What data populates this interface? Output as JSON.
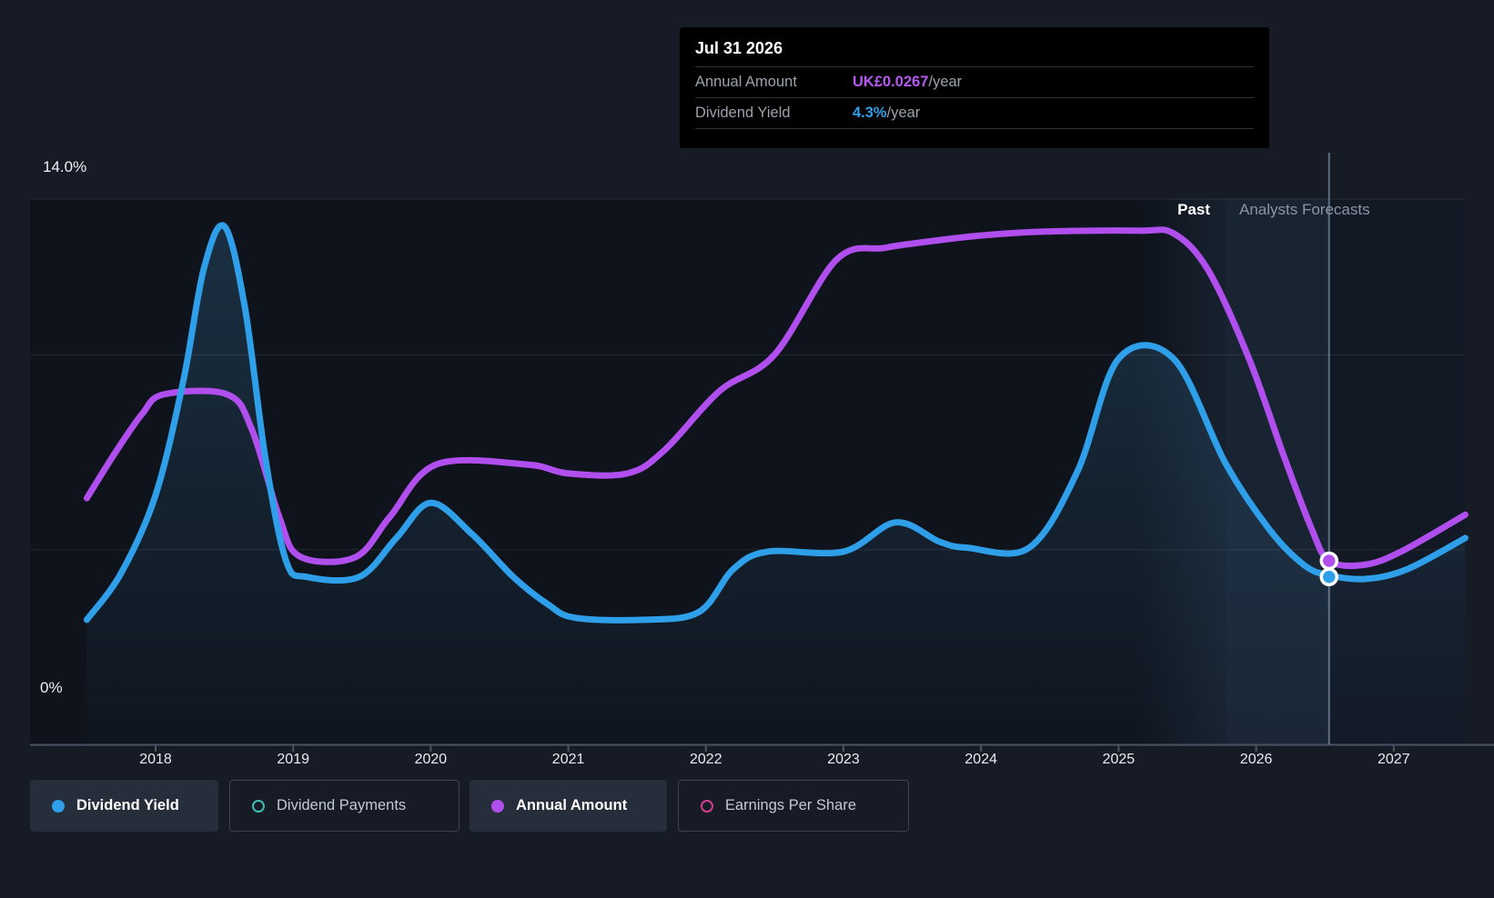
{
  "tooltip": {
    "date": "Jul 31 2026",
    "rows": [
      {
        "label": "Annual Amount",
        "value": "UK£0.0267",
        "suffix": "/year",
        "color": "#b558f0"
      },
      {
        "label": "Dividend Yield",
        "value": "4.3%",
        "suffix": "/year",
        "color": "#2e9fe8"
      }
    ]
  },
  "regions": {
    "past_label": "Past",
    "forecast_label": "Analysts Forecasts"
  },
  "axis": {
    "y_label_top": "14.0%",
    "y_label_bottom": "0%",
    "gridline_percents": [
      14,
      10,
      5
    ],
    "years": [
      2018,
      2019,
      2020,
      2021,
      2022,
      2023,
      2024,
      2025,
      2026,
      2027
    ]
  },
  "legend": [
    {
      "label": "Dividend Yield",
      "color": "#2e9fe8",
      "filled": true,
      "active": true
    },
    {
      "label": "Dividend Payments",
      "color": "#3dbdb5",
      "filled": false,
      "active": false
    },
    {
      "label": "Annual Amount",
      "color": "#b04fee",
      "filled": true,
      "active": true
    },
    {
      "label": "Earnings Per Share",
      "color": "#d33f8d",
      "filled": false,
      "active": false
    }
  ],
  "colors": {
    "background": "#161b25",
    "plot_background": "#0e131c",
    "gridline": "rgba(255,255,255,0.09)",
    "axis_line": "#4b5364",
    "forecast_band": "rgba(84,130,172,0.16)",
    "forecast_band_after_hover": "rgba(70,105,140,0.07)",
    "hover_line": "rgba(151,180,209,0.55)",
    "area_fill_top": "rgba(62,134,180,0.25)",
    "area_fill_bottom": "rgba(62,134,180,0.02)"
  },
  "chart_data": {
    "type": "line",
    "title": "Dividend history and forecast",
    "xlabel": "",
    "ylabel": "Dividend Yield (%)",
    "x_range": [
      2017.5,
      2027.55
    ],
    "x_base_year": 2018,
    "grid": true,
    "legend_position": "bottom",
    "forecast_start_year": 2025.78,
    "hover": {
      "date": "Jul 31 2026",
      "year": 2026.53,
      "dividend_yield_pct": 4.3,
      "annual_amount_gbp": 0.0267
    },
    "series": [
      {
        "name": "Dividend Yield",
        "unit": "%",
        "axis_max": 14,
        "color": "#2e9fe8",
        "fill": true,
        "points": [
          [
            2017.5,
            3.2
          ],
          [
            2017.75,
            4.4
          ],
          [
            2018.0,
            6.4
          ],
          [
            2018.2,
            9.3
          ],
          [
            2018.35,
            12.2
          ],
          [
            2018.5,
            13.3
          ],
          [
            2018.65,
            11.2
          ],
          [
            2018.8,
            7.3
          ],
          [
            2018.95,
            4.7
          ],
          [
            2019.1,
            4.3
          ],
          [
            2019.48,
            4.3
          ],
          [
            2019.75,
            5.3
          ],
          [
            2020.0,
            6.2
          ],
          [
            2020.3,
            5.4
          ],
          [
            2020.6,
            4.3
          ],
          [
            2020.85,
            3.6
          ],
          [
            2021.05,
            3.25
          ],
          [
            2021.55,
            3.2
          ],
          [
            2021.95,
            3.4
          ],
          [
            2022.2,
            4.5
          ],
          [
            2022.45,
            4.95
          ],
          [
            2023.0,
            4.95
          ],
          [
            2023.38,
            5.7
          ],
          [
            2023.7,
            5.2
          ],
          [
            2023.9,
            5.05
          ],
          [
            2024.35,
            5.05
          ],
          [
            2024.7,
            7.0
          ],
          [
            2025.0,
            9.9
          ],
          [
            2025.4,
            9.9
          ],
          [
            2025.78,
            7.2
          ],
          [
            2026.1,
            5.5
          ],
          [
            2026.35,
            4.6
          ],
          [
            2026.53,
            4.34
          ],
          [
            2026.8,
            4.25
          ],
          [
            2027.1,
            4.5
          ],
          [
            2027.52,
            5.3
          ]
        ]
      },
      {
        "name": "Annual Amount",
        "unit": "GBP/year",
        "axis_max": 0.0793,
        "color": "#b04fee",
        "fill": false,
        "points": [
          [
            2017.5,
            0.0358
          ],
          [
            2017.7,
            0.0422
          ],
          [
            2017.9,
            0.048
          ],
          [
            2018.06,
            0.0509
          ],
          [
            2018.52,
            0.0509
          ],
          [
            2018.7,
            0.0458
          ],
          [
            2018.9,
            0.033
          ],
          [
            2019.05,
            0.0273
          ],
          [
            2019.45,
            0.0272
          ],
          [
            2019.7,
            0.033
          ],
          [
            2020.04,
            0.0407
          ],
          [
            2020.7,
            0.0407
          ],
          [
            2021.0,
            0.0394
          ],
          [
            2021.43,
            0.0394
          ],
          [
            2021.7,
            0.0428
          ],
          [
            2022.1,
            0.0514
          ],
          [
            2022.5,
            0.0567
          ],
          [
            2022.95,
            0.0705
          ],
          [
            2023.3,
            0.0722
          ],
          [
            2023.61,
            0.0731
          ],
          [
            2024.0,
            0.074
          ],
          [
            2024.5,
            0.0746
          ],
          [
            2025.15,
            0.0747
          ],
          [
            2025.4,
            0.0743
          ],
          [
            2025.65,
            0.069
          ],
          [
            2025.95,
            0.056
          ],
          [
            2026.2,
            0.042
          ],
          [
            2026.4,
            0.0315
          ],
          [
            2026.53,
            0.0267
          ],
          [
            2026.78,
            0.0261
          ],
          [
            2027.05,
            0.028
          ],
          [
            2027.52,
            0.0334
          ]
        ]
      }
    ]
  }
}
